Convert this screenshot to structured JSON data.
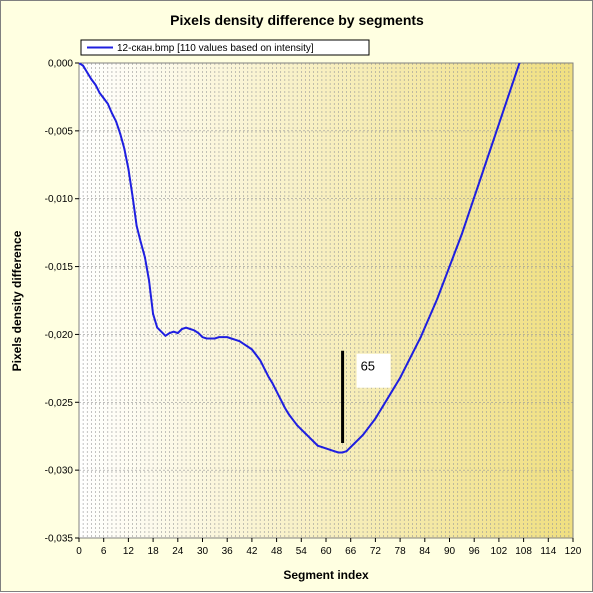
{
  "chart_data": {
    "type": "line",
    "title": "Pixels density difference by segments",
    "xlabel": "Segment index",
    "ylabel": "Pixels density difference",
    "xlim": [
      0,
      120
    ],
    "ylim": [
      -0.035,
      0.0
    ],
    "x_ticks": [
      0,
      6,
      12,
      18,
      24,
      30,
      36,
      42,
      48,
      54,
      60,
      66,
      72,
      78,
      84,
      90,
      96,
      102,
      108,
      114,
      120
    ],
    "x_tick_labels": [
      "0",
      "6",
      "12",
      "18",
      "24",
      "30",
      "36",
      "42",
      "48",
      "54",
      "60",
      "66",
      "72",
      "78",
      "84",
      "90",
      "96",
      "102",
      "108",
      "114",
      "120"
    ],
    "y_ticks": [
      0.0,
      -0.005,
      -0.01,
      -0.015,
      -0.02,
      -0.025,
      -0.03,
      -0.035
    ],
    "y_tick_labels": [
      "0,000",
      "-0,005",
      "-0,010",
      "-0,015",
      "-0,020",
      "-0,025",
      "-0,030",
      "-0,035"
    ],
    "grid": true,
    "legend_position": "top-left",
    "colors": {
      "series": "#1f1fe0",
      "annotation": "#000000",
      "background_left": "#ffffff",
      "background_right": "#f0df80"
    },
    "series": [
      {
        "name": "12-скан.bmp [110 values based on intensity]",
        "points": [
          [
            0,
            0.0
          ],
          [
            1,
            -0.0002
          ],
          [
            2,
            -0.0007
          ],
          [
            3,
            -0.0012
          ],
          [
            4,
            -0.0016
          ],
          [
            5,
            -0.0022
          ],
          [
            6,
            -0.0026
          ],
          [
            7,
            -0.003
          ],
          [
            8,
            -0.0037
          ],
          [
            9,
            -0.0043
          ],
          [
            10,
            -0.0052
          ],
          [
            11,
            -0.0063
          ],
          [
            12,
            -0.0078
          ],
          [
            13,
            -0.0098
          ],
          [
            14,
            -0.012
          ],
          [
            15,
            -0.0132
          ],
          [
            16,
            -0.0143
          ],
          [
            17,
            -0.016
          ],
          [
            18,
            -0.0185
          ],
          [
            19,
            -0.0195
          ],
          [
            20,
            -0.0198
          ],
          [
            21,
            -0.0201
          ],
          [
            22,
            -0.0199
          ],
          [
            23,
            -0.0198
          ],
          [
            24,
            -0.0199
          ],
          [
            25,
            -0.0196
          ],
          [
            26,
            -0.0195
          ],
          [
            27,
            -0.0196
          ],
          [
            28,
            -0.0197
          ],
          [
            29,
            -0.0199
          ],
          [
            30,
            -0.0202
          ],
          [
            31,
            -0.0203
          ],
          [
            32,
            -0.0203
          ],
          [
            33,
            -0.0203
          ],
          [
            34,
            -0.0202
          ],
          [
            35,
            -0.0202
          ],
          [
            36,
            -0.0202
          ],
          [
            37,
            -0.0203
          ],
          [
            38,
            -0.0204
          ],
          [
            39,
            -0.0205
          ],
          [
            40,
            -0.0207
          ],
          [
            41,
            -0.0209
          ],
          [
            42,
            -0.0211
          ],
          [
            43,
            -0.0215
          ],
          [
            44,
            -0.0219
          ],
          [
            45,
            -0.0225
          ],
          [
            46,
            -0.0231
          ],
          [
            47,
            -0.0236
          ],
          [
            48,
            -0.0242
          ],
          [
            49,
            -0.0248
          ],
          [
            50,
            -0.0254
          ],
          [
            51,
            -0.0259
          ],
          [
            52,
            -0.0263
          ],
          [
            53,
            -0.0267
          ],
          [
            54,
            -0.027
          ],
          [
            55,
            -0.0273
          ],
          [
            56,
            -0.0276
          ],
          [
            57,
            -0.0279
          ],
          [
            58,
            -0.0282
          ],
          [
            59,
            -0.0283
          ],
          [
            60,
            -0.0284
          ],
          [
            61,
            -0.0285
          ],
          [
            62,
            -0.0286
          ],
          [
            63,
            -0.0287
          ],
          [
            64,
            -0.0287
          ],
          [
            65,
            -0.0286
          ],
          [
            66,
            -0.0283
          ],
          [
            67,
            -0.028
          ],
          [
            68,
            -0.0277
          ],
          [
            69,
            -0.0274
          ],
          [
            70,
            -0.027
          ],
          [
            71,
            -0.0266
          ],
          [
            72,
            -0.0262
          ],
          [
            73,
            -0.0257
          ],
          [
            74,
            -0.0252
          ],
          [
            75,
            -0.0247
          ],
          [
            76,
            -0.0242
          ],
          [
            77,
            -0.0237
          ],
          [
            78,
            -0.0232
          ],
          [
            79,
            -0.0226
          ],
          [
            80,
            -0.022
          ],
          [
            81,
            -0.0214
          ],
          [
            82,
            -0.0208
          ],
          [
            83,
            -0.0202
          ],
          [
            84,
            -0.0195
          ],
          [
            85,
            -0.0188
          ],
          [
            86,
            -0.0181
          ],
          [
            87,
            -0.0174
          ],
          [
            88,
            -0.0166
          ],
          [
            89,
            -0.0158
          ],
          [
            90,
            -0.015
          ],
          [
            91,
            -0.0142
          ],
          [
            92,
            -0.0134
          ],
          [
            93,
            -0.0126
          ],
          [
            94,
            -0.0117
          ],
          [
            95,
            -0.0108
          ],
          [
            96,
            -0.0099
          ],
          [
            97,
            -0.009
          ],
          [
            98,
            -0.0081
          ],
          [
            99,
            -0.0072
          ],
          [
            100,
            -0.0063
          ],
          [
            101,
            -0.0054
          ],
          [
            102,
            -0.0045
          ],
          [
            103,
            -0.0036
          ],
          [
            104,
            -0.0027
          ],
          [
            105,
            -0.0018
          ],
          [
            106,
            -0.0009
          ],
          [
            107,
            -0.0
          ],
          [
            108,
            0.0009
          ],
          [
            109,
            0.0018
          ]
        ]
      }
    ],
    "annotation": {
      "label": "65",
      "x": 65,
      "y_top": -0.0212,
      "y_bottom": -0.028
    }
  }
}
